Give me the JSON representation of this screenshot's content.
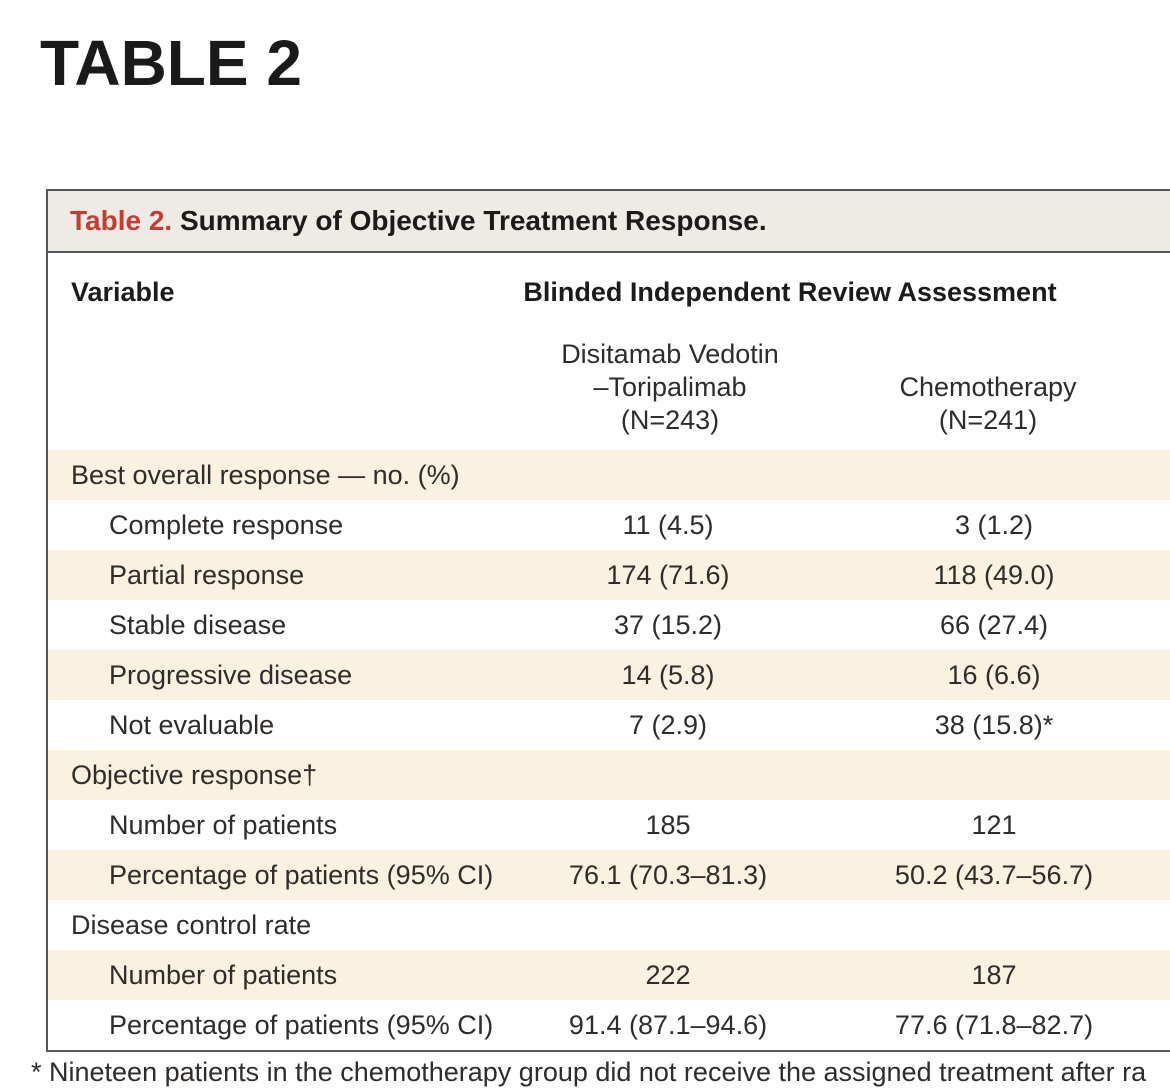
{
  "page": {
    "heading": "TABLE 2"
  },
  "table": {
    "title": {
      "label": "Table 2.",
      "text": " Summary of Objective Treatment Response."
    },
    "columns": {
      "variable_header": "Variable",
      "spanner": "Blinded Independent Review Assessment",
      "group1_line1": "Disitamab Vedotin",
      "group1_line2": "–Toripalimab",
      "group1_n": "(N=243)",
      "group2_line1": "Chemotherapy",
      "group2_n": "(N=241)"
    },
    "rows": [
      {
        "label": "Best overall response — no. (%)",
        "indent": false,
        "shaded": true,
        "values": [
          "",
          ""
        ]
      },
      {
        "label": "Complete response",
        "indent": true,
        "shaded": false,
        "values": [
          "11 (4.5)",
          "3 (1.2)"
        ]
      },
      {
        "label": "Partial response",
        "indent": true,
        "shaded": true,
        "values": [
          "174 (71.6)",
          "118 (49.0)"
        ]
      },
      {
        "label": "Stable disease",
        "indent": true,
        "shaded": false,
        "values": [
          "37 (15.2)",
          "66 (27.4)"
        ]
      },
      {
        "label": "Progressive disease",
        "indent": true,
        "shaded": true,
        "values": [
          "14 (5.8)",
          "16 (6.6)"
        ]
      },
      {
        "label": "Not evaluable",
        "indent": true,
        "shaded": false,
        "values": [
          "7 (2.9)",
          "38 (15.8)*"
        ]
      },
      {
        "label": "Objective response†",
        "indent": false,
        "shaded": true,
        "values": [
          "",
          ""
        ]
      },
      {
        "label": "Number of patients",
        "indent": true,
        "shaded": false,
        "values": [
          "185",
          "121"
        ]
      },
      {
        "label": "Percentage of patients (95% CI)",
        "indent": true,
        "shaded": true,
        "values": [
          "76.1 (70.3–81.3)",
          "50.2 (43.7–56.7)"
        ]
      },
      {
        "label": "Disease control rate",
        "indent": false,
        "shaded": false,
        "values": [
          "",
          ""
        ]
      },
      {
        "label": "Number of patients",
        "indent": true,
        "shaded": true,
        "values": [
          "222",
          "187"
        ]
      },
      {
        "label": "Percentage of patients (95% CI)",
        "indent": true,
        "shaded": false,
        "values": [
          "91.4 (87.1–94.6)",
          "77.6 (71.8–82.7)"
        ]
      }
    ],
    "footnote": "* Nineteen patients in the chemotherapy group did not receive the assigned treatment after ra"
  },
  "colors": {
    "accent_red": "#c43d33",
    "shaded_row": "#faf1e1",
    "title_bar_bg": "#edebe4",
    "border": "#55565b"
  }
}
